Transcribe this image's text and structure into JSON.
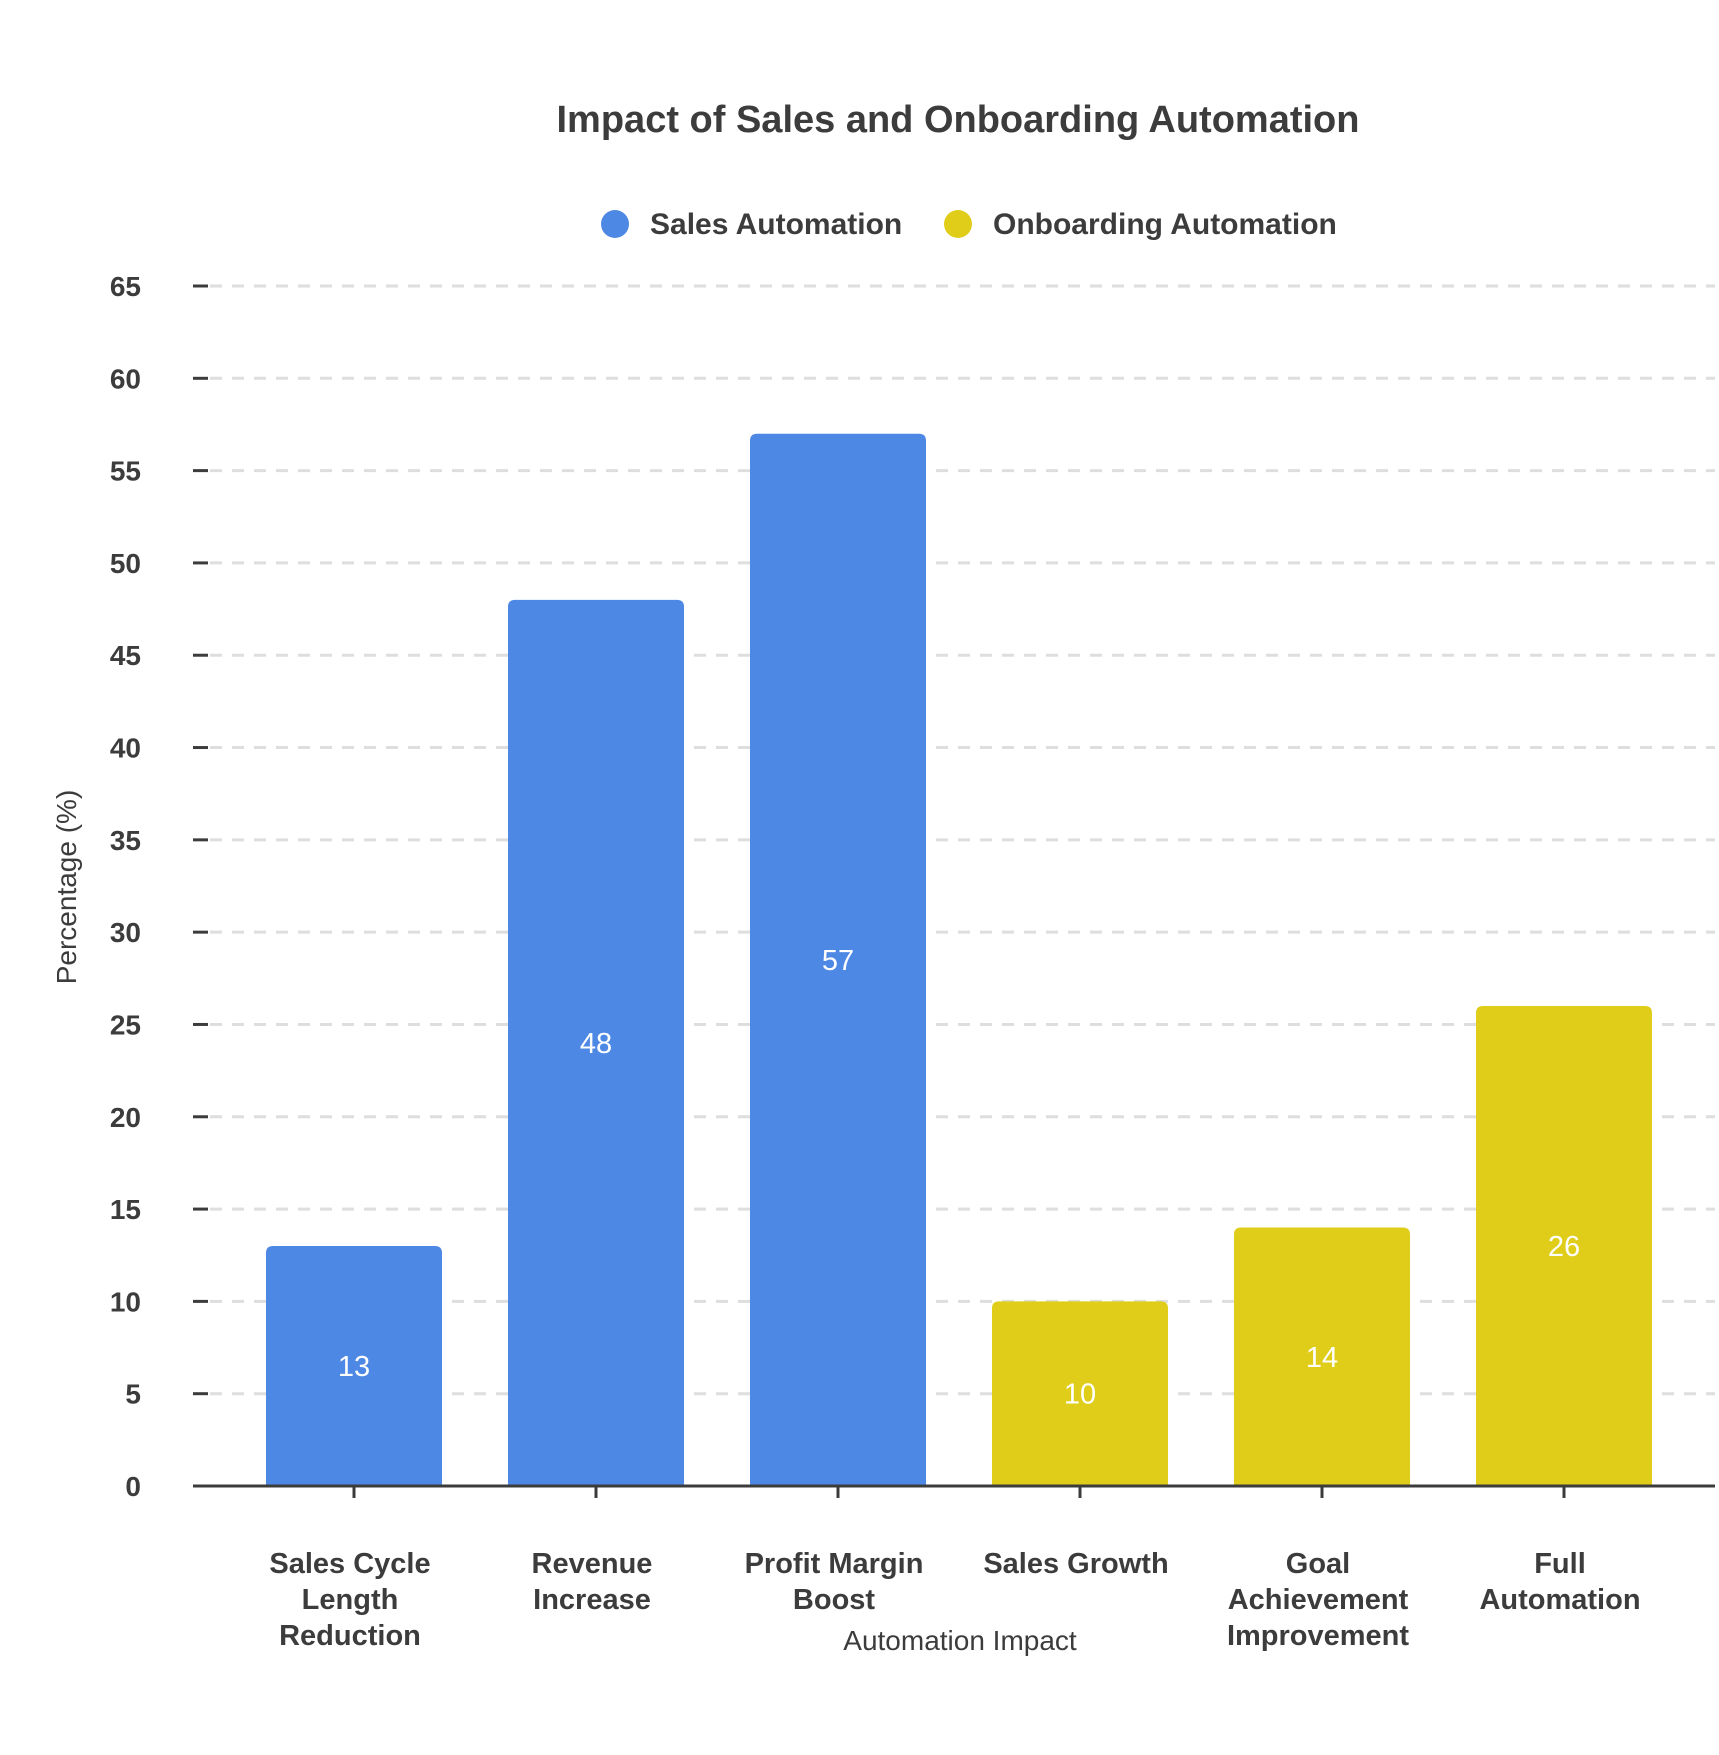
{
  "chart_data": {
    "type": "bar",
    "title": "Impact of Sales and Onboarding Automation",
    "xlabel": "Automation Impact",
    "ylabel": "Percentage (%)",
    "ylim": [
      0,
      65
    ],
    "yticks": [
      0,
      5,
      10,
      15,
      20,
      25,
      30,
      35,
      40,
      45,
      50,
      55,
      60,
      65
    ],
    "grid": "horizontal dashed",
    "legend_position": "top-center",
    "categories": [
      [
        "Sales Cycle",
        "Length",
        "Reduction"
      ],
      [
        "Revenue",
        "Increase"
      ],
      [
        "Profit Margin",
        "Boost"
      ],
      [
        "Sales Growth"
      ],
      [
        "Goal",
        "Achievement",
        "Improvement"
      ],
      [
        "Full",
        "Automation"
      ]
    ],
    "series": [
      {
        "name": "Sales Automation",
        "color": "#4e88e5",
        "values": [
          13,
          48,
          57,
          null,
          null,
          null
        ]
      },
      {
        "name": "Onboarding Automation",
        "color": "#dfcd19",
        "values": [
          null,
          null,
          null,
          10,
          14,
          26
        ]
      }
    ]
  }
}
